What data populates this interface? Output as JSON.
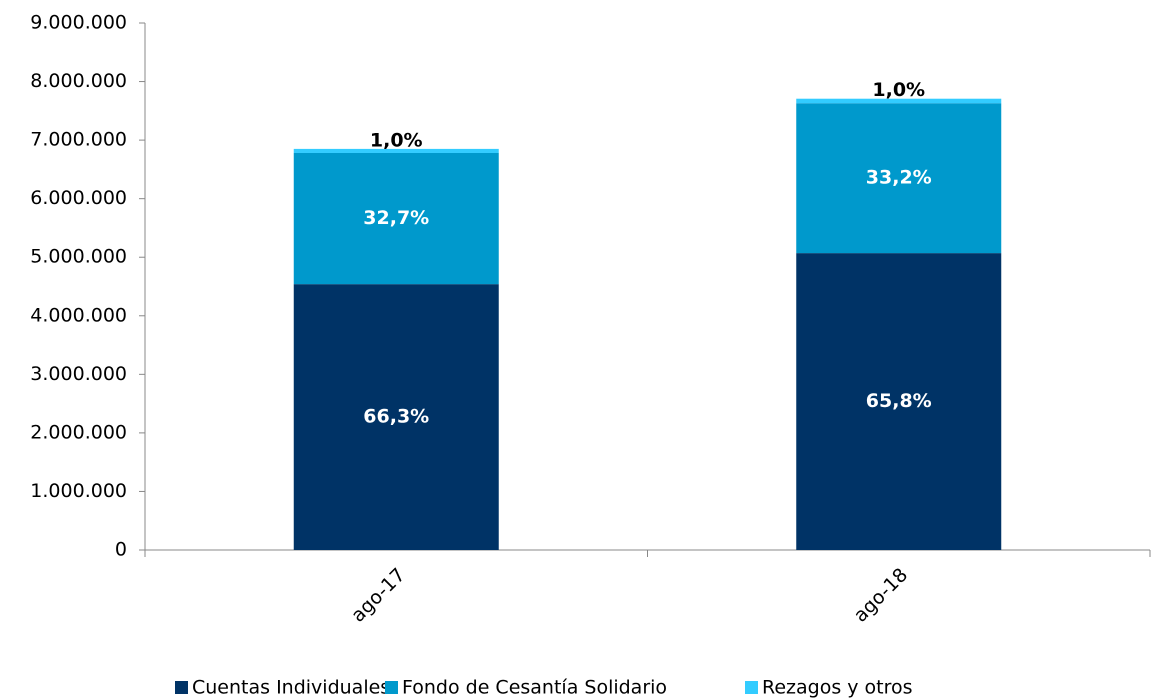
{
  "chart_data": {
    "type": "stacked_bar",
    "categories": [
      "ago-17",
      "ago-18"
    ],
    "series": [
      {
        "name": "Cuentas Individuales",
        "color": "#003366",
        "values": [
          4540000,
          5070000
        ],
        "value_labels": [
          "66,3%",
          "65,8%"
        ]
      },
      {
        "name": "Fondo de Cesantía Solidario",
        "color": "#0099cc",
        "values": [
          2240000,
          2560000
        ],
        "value_labels": [
          "32,7%",
          "33,2%"
        ]
      },
      {
        "name": "Rezagos y otros",
        "color": "#33ccff",
        "values": [
          70000,
          77000
        ],
        "value_labels": [
          "1,0%",
          "1,0%"
        ]
      }
    ],
    "ylim": [
      0,
      9000000
    ],
    "yticks": [
      0,
      {
        "value": 1000000,
        "label": "1.000.000"
      },
      {
        "value": 2000000,
        "label": "2.000.000"
      },
      {
        "value": 3000000,
        "label": "3.000.000"
      },
      {
        "value": 4000000,
        "label": "4.000.000"
      },
      {
        "value": 5000000,
        "label": "5.000.000"
      },
      {
        "value": 6000000,
        "label": "6.000.000"
      },
      {
        "value": 7000000,
        "label": "7.000.000"
      },
      {
        "value": 8000000,
        "label": "8.000.000"
      },
      {
        "value": 9000000,
        "label": "9.000.000"
      }
    ],
    "grid": false,
    "legend": "bottom"
  }
}
